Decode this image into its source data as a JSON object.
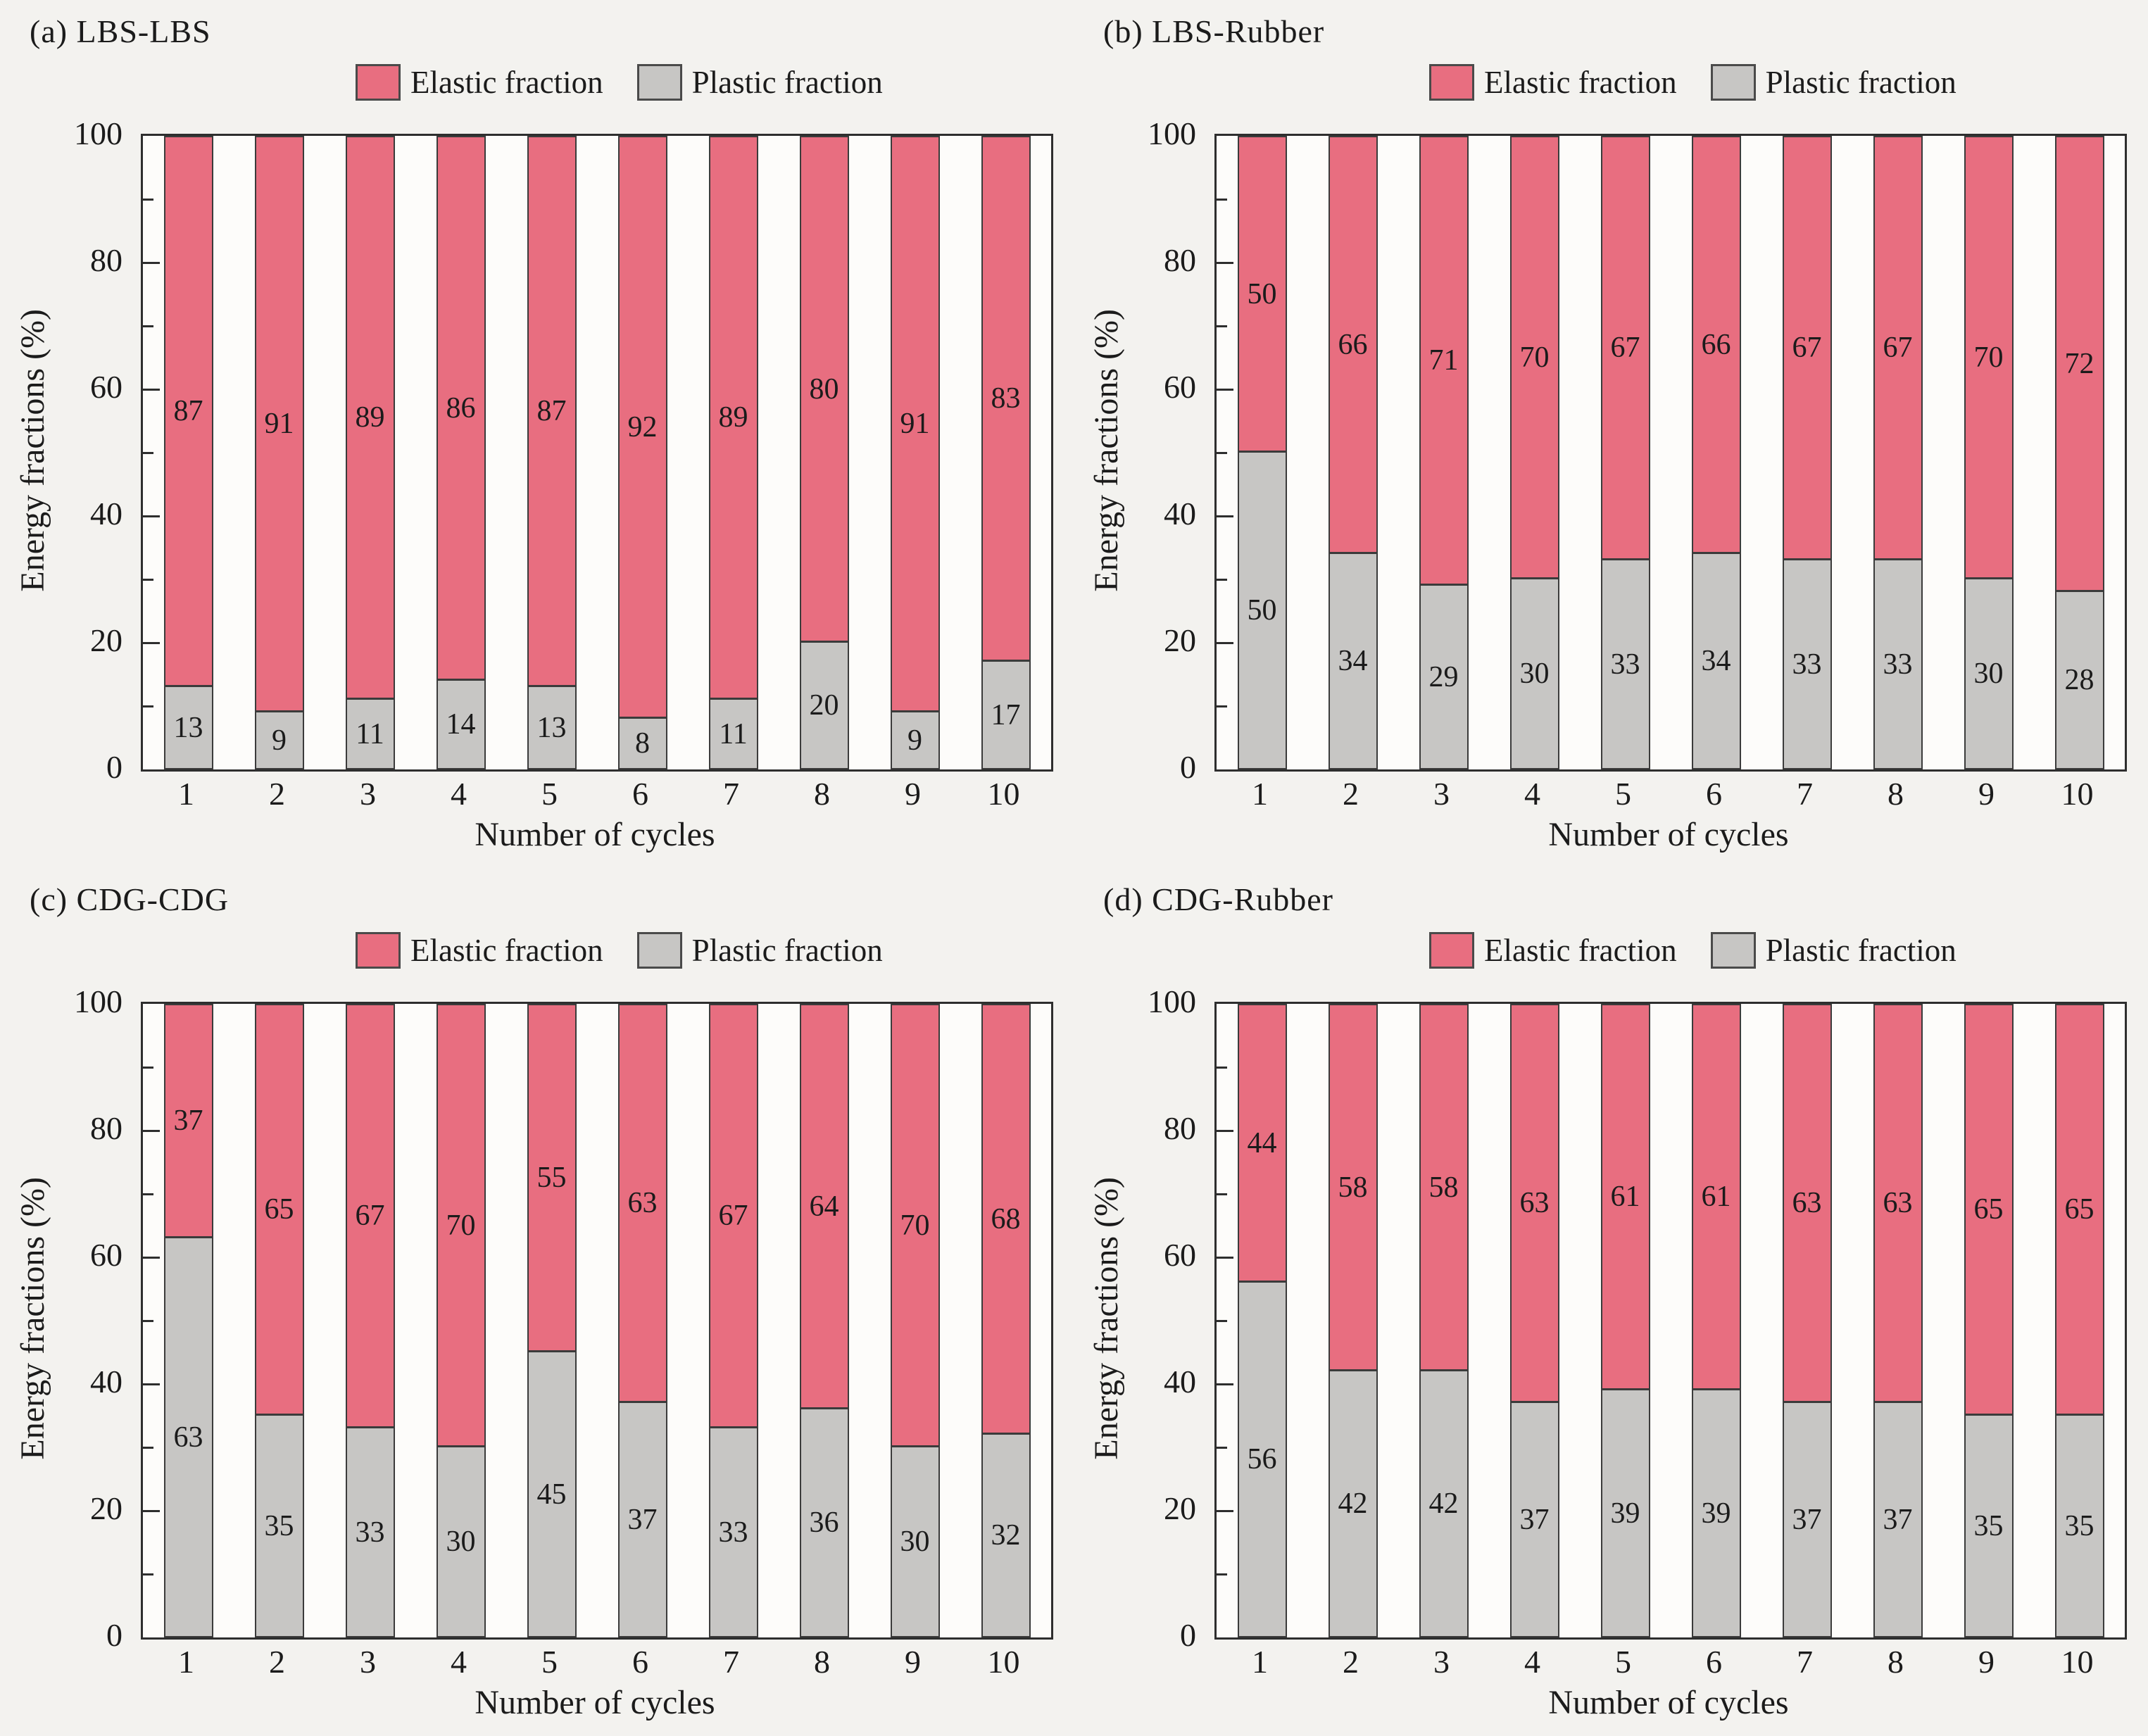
{
  "legend": {
    "elastic": "Elastic fraction",
    "plastic": "Plastic fraction"
  },
  "axes": {
    "x_label": "Number of cycles",
    "y_label": "Energy fractions (%)",
    "y_ticks": [
      0,
      20,
      40,
      60,
      80,
      100
    ],
    "y_minor_step": 10,
    "y_range": [
      0,
      100
    ]
  },
  "colors": {
    "elastic": "#e86e80",
    "plastic": "#c7c6c4",
    "frame": "#2e2e2e",
    "page_background": "#f3f2ef",
    "plot_background": "#fdfcfa",
    "label_text": "#1b1b1b"
  },
  "chart_data": [
    {
      "type": "bar",
      "stacked": true,
      "panel": "a",
      "title": "(a) LBS-LBS",
      "xlabel": "Number of cycles",
      "ylabel": "Energy fractions (%)",
      "ylim": [
        0,
        100
      ],
      "categories": [
        1,
        2,
        3,
        4,
        5,
        6,
        7,
        8,
        9,
        10
      ],
      "series": [
        {
          "name": "Elastic fraction",
          "values": [
            87,
            91,
            89,
            86,
            87,
            92,
            89,
            80,
            91,
            83
          ]
        },
        {
          "name": "Plastic fraction",
          "values": [
            13,
            9,
            11,
            14,
            13,
            8,
            11,
            20,
            9,
            17
          ]
        }
      ]
    },
    {
      "type": "bar",
      "stacked": true,
      "panel": "b",
      "title": "(b) LBS-Rubber",
      "xlabel": "Number of cycles",
      "ylabel": "Energy fractions (%)",
      "ylim": [
        0,
        100
      ],
      "categories": [
        1,
        2,
        3,
        4,
        5,
        6,
        7,
        8,
        9,
        10
      ],
      "series": [
        {
          "name": "Elastic fraction",
          "values": [
            50,
            66,
            71,
            70,
            67,
            66,
            67,
            67,
            70,
            72
          ]
        },
        {
          "name": "Plastic fraction",
          "values": [
            50,
            34,
            29,
            30,
            33,
            34,
            33,
            33,
            30,
            28
          ]
        }
      ]
    },
    {
      "type": "bar",
      "stacked": true,
      "panel": "c",
      "title": "(c) CDG-CDG",
      "xlabel": "Number of cycles",
      "ylabel": "Energy fractions (%)",
      "ylim": [
        0,
        100
      ],
      "categories": [
        1,
        2,
        3,
        4,
        5,
        6,
        7,
        8,
        9,
        10
      ],
      "series": [
        {
          "name": "Elastic fraction",
          "values": [
            37,
            65,
            67,
            70,
            55,
            63,
            67,
            64,
            70,
            68
          ]
        },
        {
          "name": "Plastic fraction",
          "values": [
            63,
            35,
            33,
            30,
            45,
            37,
            33,
            36,
            30,
            32
          ]
        }
      ]
    },
    {
      "type": "bar",
      "stacked": true,
      "panel": "d",
      "title": "(d) CDG-Rubber",
      "xlabel": "Number of cycles",
      "ylabel": "Energy fractions (%)",
      "ylim": [
        0,
        100
      ],
      "categories": [
        1,
        2,
        3,
        4,
        5,
        6,
        7,
        8,
        9,
        10
      ],
      "series": [
        {
          "name": "Elastic fraction",
          "values": [
            44,
            58,
            58,
            63,
            61,
            61,
            63,
            63,
            65,
            65
          ]
        },
        {
          "name": "Plastic fraction",
          "values": [
            56,
            42,
            42,
            37,
            39,
            39,
            37,
            37,
            35,
            35
          ]
        }
      ]
    }
  ]
}
